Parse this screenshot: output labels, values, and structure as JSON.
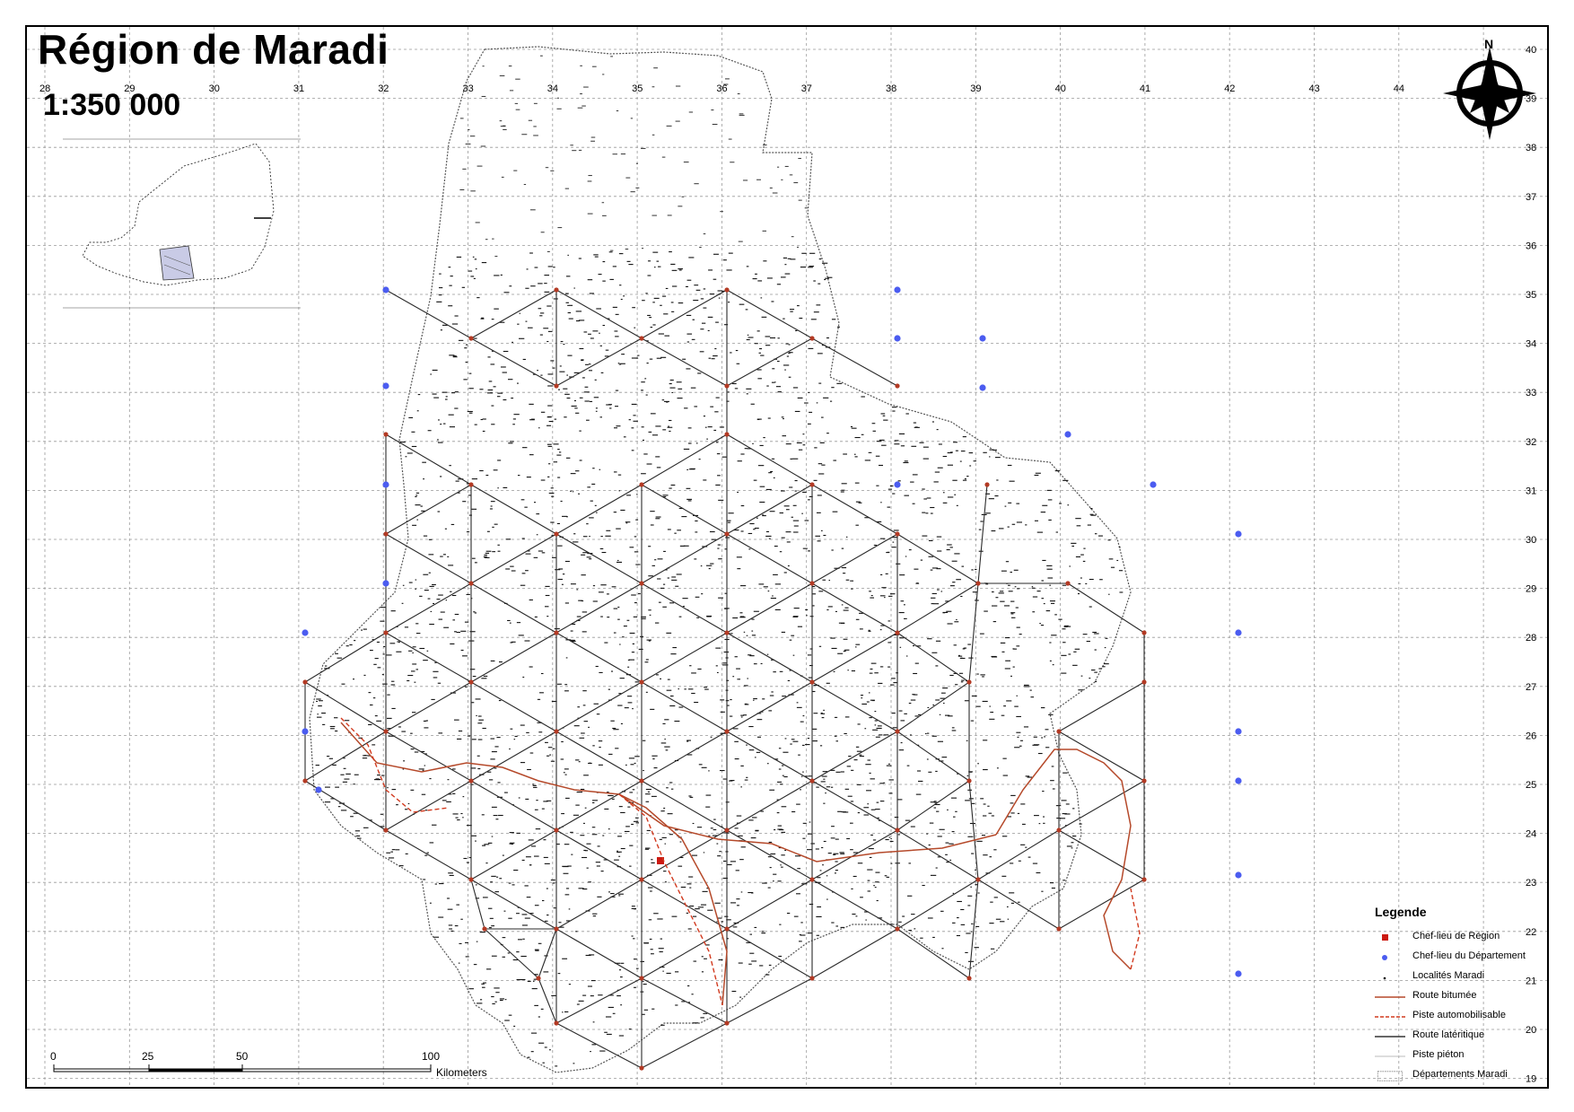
{
  "map": {
    "title": "Région de Maradi",
    "scale": "1:350 000",
    "grid_top_labels": [
      "28",
      "29",
      "30",
      "31",
      "32",
      "33",
      "34",
      "35",
      "36",
      "37",
      "38",
      "39",
      "40",
      "41",
      "42",
      "43",
      "44"
    ],
    "grid_right_labels": [
      "40",
      "39",
      "38",
      "37",
      "36",
      "35",
      "34",
      "33",
      "32",
      "31",
      "30",
      "29",
      "28",
      "27",
      "26",
      "25",
      "24",
      "23",
      "22",
      "21",
      "20",
      "19"
    ],
    "north_arrow_letter": "N"
  },
  "scalebar": {
    "ticks": [
      "0",
      "25",
      "50",
      "100"
    ],
    "unit": "Kilometers"
  },
  "legend": {
    "title": "Legende",
    "items": [
      {
        "label": "Chef-lieu de Région",
        "symbol": "square",
        "color": "#cc1a12"
      },
      {
        "label": "Chef-lieu du Département",
        "symbol": "dot",
        "color": "#4b5cf0"
      },
      {
        "label": "Localités Maradi",
        "symbol": "small-dot",
        "color": "#000000"
      },
      {
        "label": "Route bitumée",
        "symbol": "line",
        "color": "#b5492a"
      },
      {
        "label": "Piste automobilisable",
        "symbol": "dashed-line",
        "color": "#d23a1f"
      },
      {
        "label": "Route latéritique",
        "symbol": "line",
        "color": "#333333"
      },
      {
        "label": "Piste piéton",
        "symbol": "thin-line",
        "color": "#bbbbbb"
      },
      {
        "label": "Départements Maradi",
        "symbol": "box",
        "color": "#888888"
      }
    ]
  }
}
